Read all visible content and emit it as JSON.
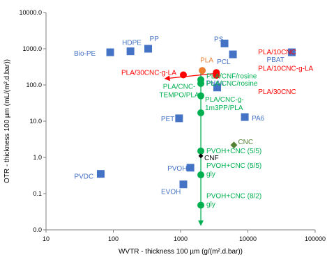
{
  "chart_data": {
    "type": "scatter",
    "title": "",
    "xlabel": "WVTR - thickness 100 µm (g/(m².d.bar))",
    "ylabel": "OTR - thickness 100 µm (mL/(m².d.bar))",
    "x_scale": "log",
    "y_scale": "log",
    "xlim": [
      10,
      100000
    ],
    "ylim": [
      0.01,
      10000
    ],
    "x_ticks": [
      10,
      100,
      1000,
      10000,
      100000
    ],
    "x_tick_labels": [
      "10",
      "100",
      "1000",
      "10000",
      "100000"
    ],
    "y_ticks": [
      0.01,
      0.1,
      1,
      10,
      100,
      1000,
      10000
    ],
    "y_tick_labels": [
      "0.0",
      "0.1",
      "1.0",
      "10.0",
      "100.0",
      "1000.0",
      "10000.0"
    ],
    "grid": false,
    "legend": "none",
    "points": [
      {
        "label": "Bio-PE",
        "x": 90,
        "y": 800,
        "color": "#4472C4",
        "marker": "square"
      },
      {
        "label": "HDPE",
        "x": 180,
        "y": 850,
        "color": "#4472C4",
        "marker": "square"
      },
      {
        "label": "PP",
        "x": 330,
        "y": 1000,
        "color": "#4472C4",
        "marker": "square"
      },
      {
        "label": "PS",
        "x": 4500,
        "y": 1400,
        "color": "#4472C4",
        "marker": "square"
      },
      {
        "label": "PCL",
        "x": 6000,
        "y": 700,
        "color": "#4472C4",
        "marker": "square"
      },
      {
        "label": "PBAT",
        "x": 45000,
        "y": 800,
        "color": "#4472C4",
        "marker": "square"
      },
      {
        "label": "PHAs",
        "x": 3500,
        "y": 85,
        "color": "#4472C4",
        "marker": "square"
      },
      {
        "label": "PET",
        "x": 950,
        "y": 12,
        "color": "#4472C4",
        "marker": "square"
      },
      {
        "label": "PA6",
        "x": 9000,
        "y": 13,
        "color": "#4472C4",
        "marker": "square"
      },
      {
        "label": "PVDC",
        "x": 65,
        "y": 0.35,
        "color": "#4472C4",
        "marker": "square"
      },
      {
        "label": "PVOH",
        "x": 1400,
        "y": 0.52,
        "color": "#4472C4",
        "marker": "square"
      },
      {
        "label": "EVOH",
        "x": 1100,
        "y": 0.18,
        "color": "#4472C4",
        "marker": "square"
      },
      {
        "label": "PLA",
        "x": 2100,
        "y": 250,
        "color": "#ED7D31",
        "marker": "circle"
      },
      {
        "label": "PLA/30CNC-g-LA",
        "x": 1100,
        "y": 190,
        "color": "#FF0000",
        "marker": "circle"
      },
      {
        "label": "PLA/10CNC",
        "x": 3400,
        "y": 220,
        "color": "#FF0000",
        "marker": "circle"
      },
      {
        "label": "PLA/10CNC-g-LA",
        "x": 3400,
        "y": 200,
        "color": "#FF0000",
        "marker": "circle"
      },
      {
        "label": "PLA/30CNC",
        "x": 3400,
        "y": 185,
        "color": "#FF0000",
        "marker": "circle"
      },
      {
        "label": "PLA/CNF/rosine",
        "x": 2000,
        "y": 140,
        "color": "#00B050",
        "marker": "circle"
      },
      {
        "label": "PLA/CNC/rosine",
        "x": 2000,
        "y": 110,
        "color": "#00B050",
        "marker": "circle"
      },
      {
        "label": "PLA/CNC-TEMPO/PLA",
        "x": 2000,
        "y": 50,
        "color": "#00B050",
        "marker": "circle"
      },
      {
        "label": "PLA/CNC-g-1m3PP/PLA",
        "x": 2000,
        "y": 17,
        "color": "#00B050",
        "marker": "circle"
      },
      {
        "label": "PVOH+CNC (5/5)",
        "x": 2000,
        "y": 1.5,
        "color": "#00B050",
        "marker": "circle"
      },
      {
        "label": "PVOH+CNC (5/5) gly",
        "x": 2000,
        "y": 0.33,
        "color": "#00B050",
        "marker": "circle"
      },
      {
        "label": "PVOH+CNC (8/2) gly",
        "x": 2000,
        "y": 0.048,
        "color": "#00B050",
        "marker": "circle"
      },
      {
        "label": "CNC",
        "x": 6200,
        "y": 2.2,
        "color": "#548235",
        "marker": "diamond"
      },
      {
        "label": "CNF",
        "x": 2000,
        "y": 1.1,
        "color": "#000000",
        "marker": "diamond"
      }
    ],
    "arrows": [
      {
        "from": [
          2000,
          250
        ],
        "to": [
          2000,
          0.014
        ],
        "color": "#00B050"
      },
      {
        "from": [
          3400,
          210
        ],
        "to": [
          600,
          150
        ],
        "color": "#FF0000"
      }
    ]
  }
}
